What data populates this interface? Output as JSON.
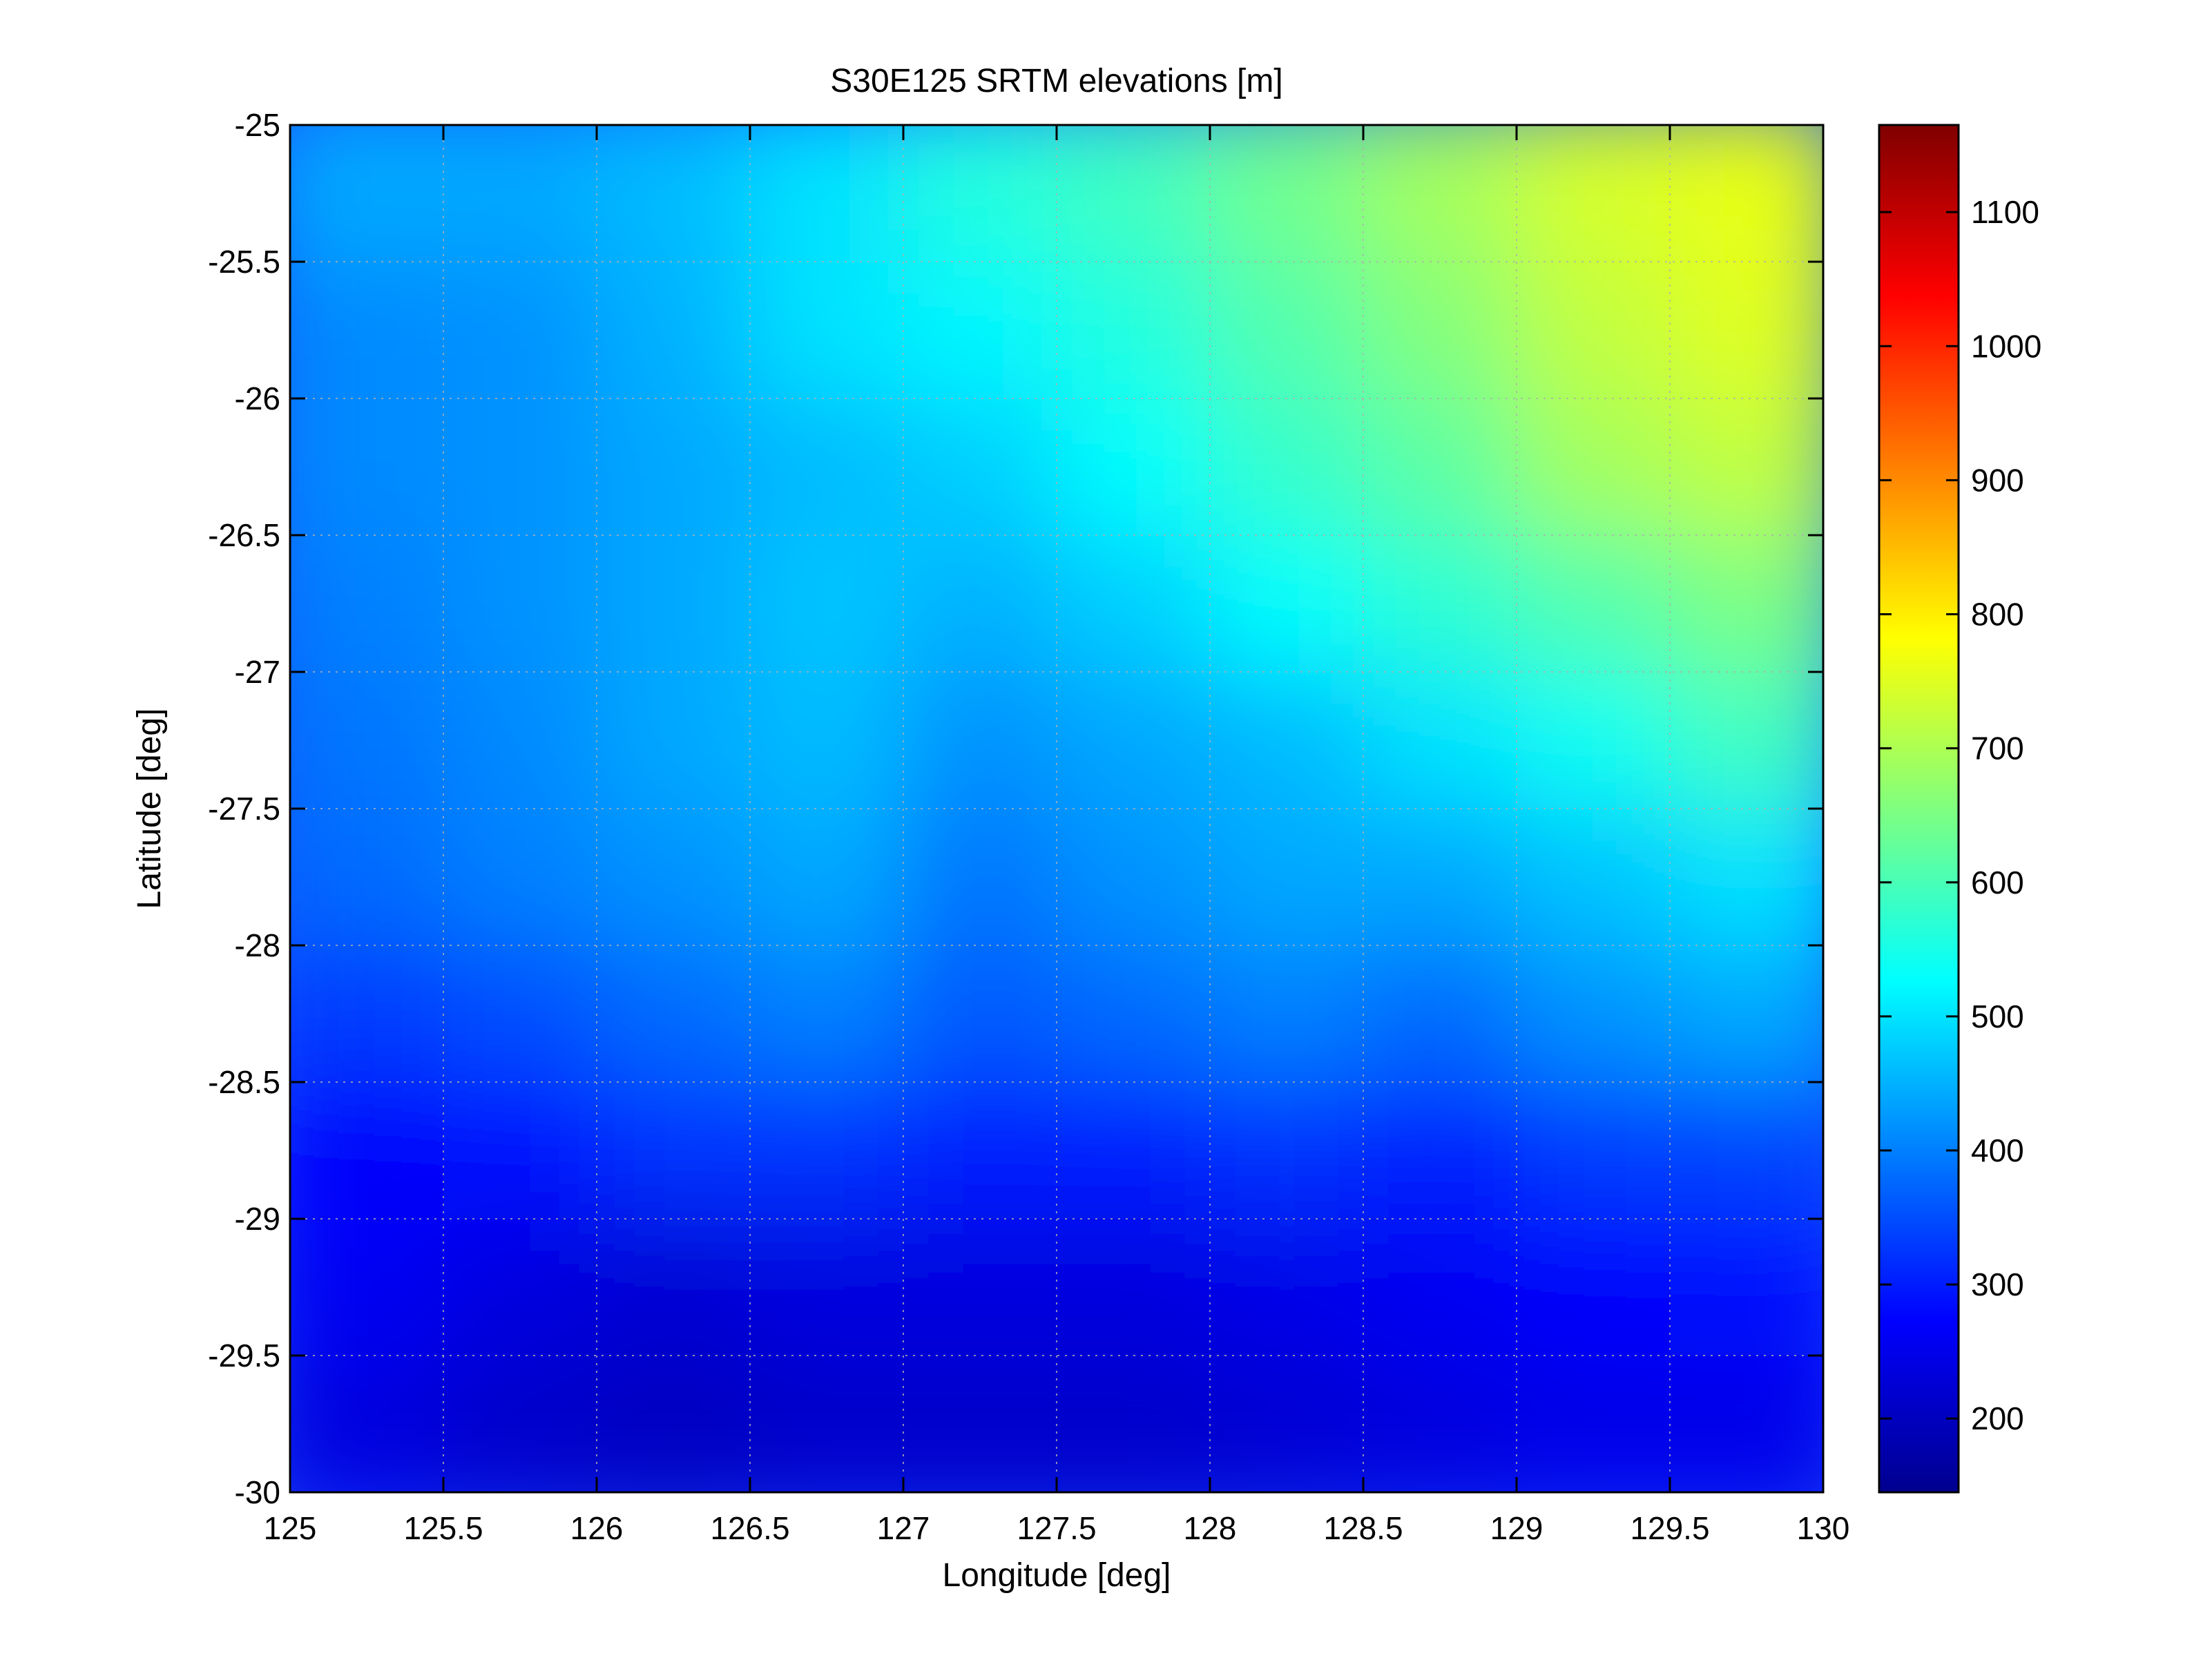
{
  "chart_data": {
    "type": "heatmap",
    "title": "S30E125 SRTM elevations [m]",
    "xlabel": "Longitude [deg]",
    "ylabel": "Latitude [deg]",
    "xlim": [
      125,
      130
    ],
    "ylim": [
      -30,
      -25
    ],
    "x_ticks": [
      125,
      125.5,
      126,
      126.5,
      127,
      127.5,
      128,
      128.5,
      129,
      129.5,
      130
    ],
    "x_tick_labels": [
      "125",
      "125.5",
      "126",
      "126.5",
      "127",
      "127.5",
      "128",
      "128.5",
      "129",
      "129.5",
      "130"
    ],
    "y_ticks": [
      -25,
      -25.5,
      -26,
      -26.5,
      -27,
      -27.5,
      -28,
      -28.5,
      -29,
      -29.5,
      -30
    ],
    "y_tick_labels": [
      "-25",
      "-25.5",
      "-26",
      "-26.5",
      "-27",
      "-27.5",
      "-28",
      "-28.5",
      "-29",
      "-29.5",
      "-30"
    ],
    "grid": true,
    "colormap": "jet",
    "colorbar": {
      "range": [
        145,
        1165
      ],
      "ticks": [
        200,
        300,
        400,
        500,
        600,
        700,
        800,
        900,
        1000,
        1100
      ],
      "tick_labels": [
        "200",
        "300",
        "400",
        "500",
        "600",
        "700",
        "800",
        "900",
        "1000",
        "1100"
      ],
      "placement": "right"
    },
    "elevation_grid": {
      "lon": [
        125.25,
        125.75,
        126.25,
        126.75,
        127.25,
        127.75,
        128.25,
        128.75,
        129.25,
        129.75
      ],
      "lat": [
        -25.25,
        -25.75,
        -26.25,
        -26.75,
        -27.25,
        -27.75,
        -28.25,
        -28.75,
        -29.25,
        -29.75
      ],
      "values": [
        [
          440,
          440,
          460,
          500,
          560,
          590,
          640,
          690,
          740,
          760
        ],
        [
          410,
          420,
          450,
          500,
          520,
          560,
          610,
          660,
          720,
          750
        ],
        [
          410,
          420,
          440,
          460,
          480,
          530,
          580,
          620,
          690,
          720
        ],
        [
          400,
          420,
          440,
          470,
          450,
          480,
          530,
          570,
          610,
          650
        ],
        [
          390,
          410,
          440,
          460,
          420,
          440,
          460,
          500,
          540,
          590
        ],
        [
          380,
          400,
          420,
          440,
          390,
          420,
          440,
          440,
          470,
          500
        ],
        [
          330,
          350,
          380,
          400,
          360,
          380,
          400,
          380,
          420,
          440
        ],
        [
          270,
          290,
          320,
          320,
          300,
          300,
          320,
          300,
          330,
          340
        ],
        [
          260,
          240,
          230,
          240,
          240,
          240,
          250,
          260,
          270,
          280
        ],
        [
          240,
          220,
          210,
          220,
          220,
          220,
          230,
          240,
          250,
          250
        ]
      ]
    }
  },
  "colors": {
    "jet": [
      "#00008f",
      "#0000ff",
      "#0080ff",
      "#00ffff",
      "#80ff80",
      "#ffff00",
      "#ff8000",
      "#ff0000",
      "#800000"
    ],
    "grid": "#b0b0b0",
    "axis": "#000000",
    "background": "#ffffff"
  }
}
